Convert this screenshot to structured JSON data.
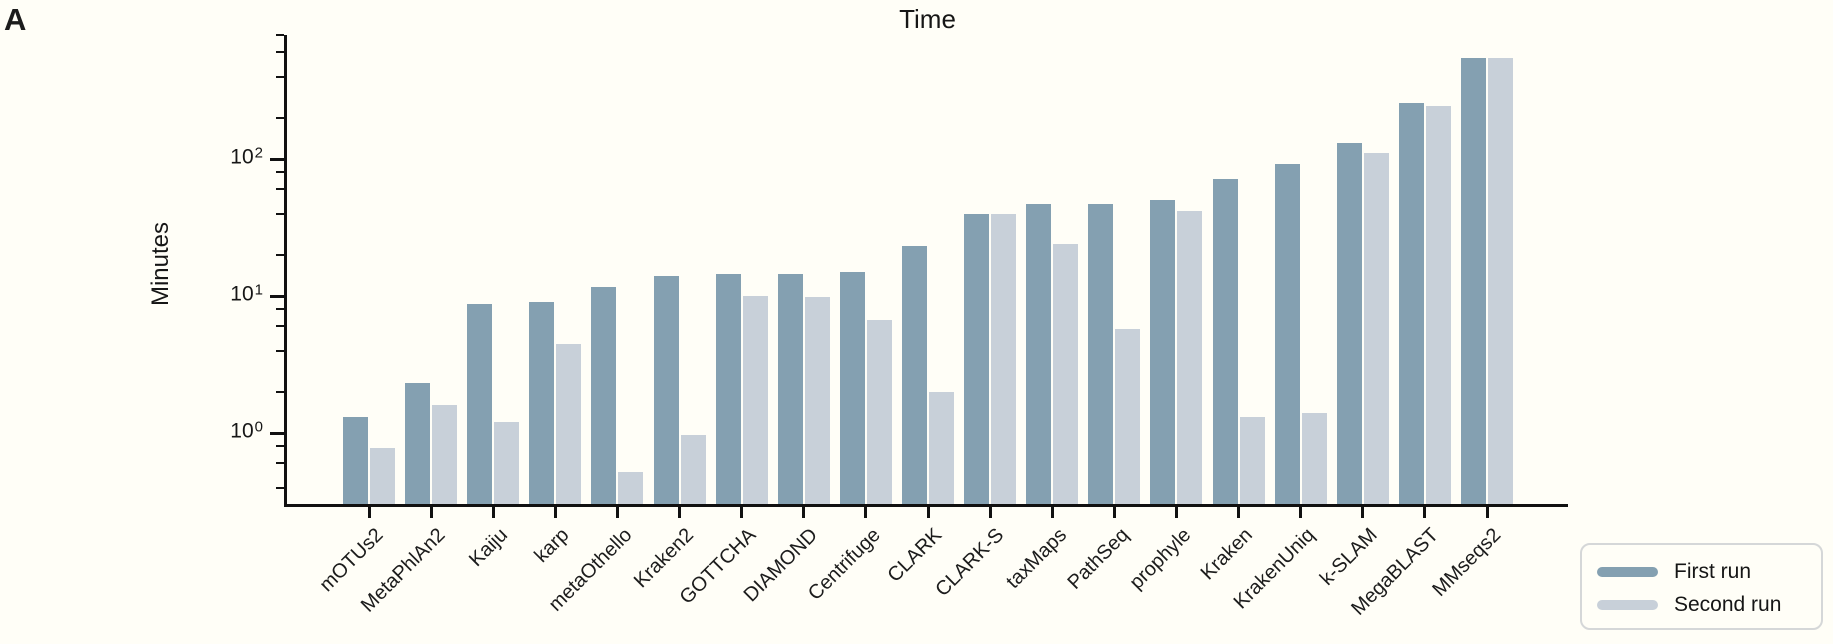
{
  "figure": {
    "panel_label": "A"
  },
  "chart_data": {
    "type": "bar",
    "title": "Time",
    "ylabel": "Minutes",
    "xlabel": "",
    "yscale": "log",
    "ylim": [
      0.33,
      800
    ],
    "ytick_exponents": [
      0,
      1,
      2
    ],
    "yminor_ticks": [
      0.4,
      0.6,
      0.8,
      2,
      4,
      6,
      8,
      20,
      40,
      60,
      80,
      200,
      400,
      600,
      800
    ],
    "grid": false,
    "legend_position": "outside-bottom-right",
    "categories": [
      "mOTUs2",
      "MetaPhlAn2",
      "Kaiju",
      "karp",
      "metaOthello",
      "Kraken2",
      "GOTTCHA",
      "DIAMOND",
      "Centrifuge",
      "CLARK",
      "CLARK-S",
      "taxMaps",
      "PathSeq",
      "prophyle",
      "Kraken",
      "KrakenUniq",
      "k-SLAM",
      "MegaBLAST",
      "MMseqs2"
    ],
    "series": [
      {
        "name": "First run",
        "color": "#84a0b1",
        "values": [
          1.3,
          2.3,
          8.7,
          9.0,
          11.7,
          14,
          14.5,
          14.5,
          15,
          23,
          40,
          47,
          47,
          50,
          72,
          92,
          130,
          255,
          550
        ]
      },
      {
        "name": "Second run",
        "color": "#c8d0d9",
        "values": [
          0.78,
          1.6,
          1.2,
          4.5,
          0.52,
          0.97,
          10,
          9.9,
          6.7,
          2.0,
          40,
          24,
          5.7,
          42,
          1.3,
          1.4,
          110,
          245,
          545
        ]
      }
    ]
  }
}
